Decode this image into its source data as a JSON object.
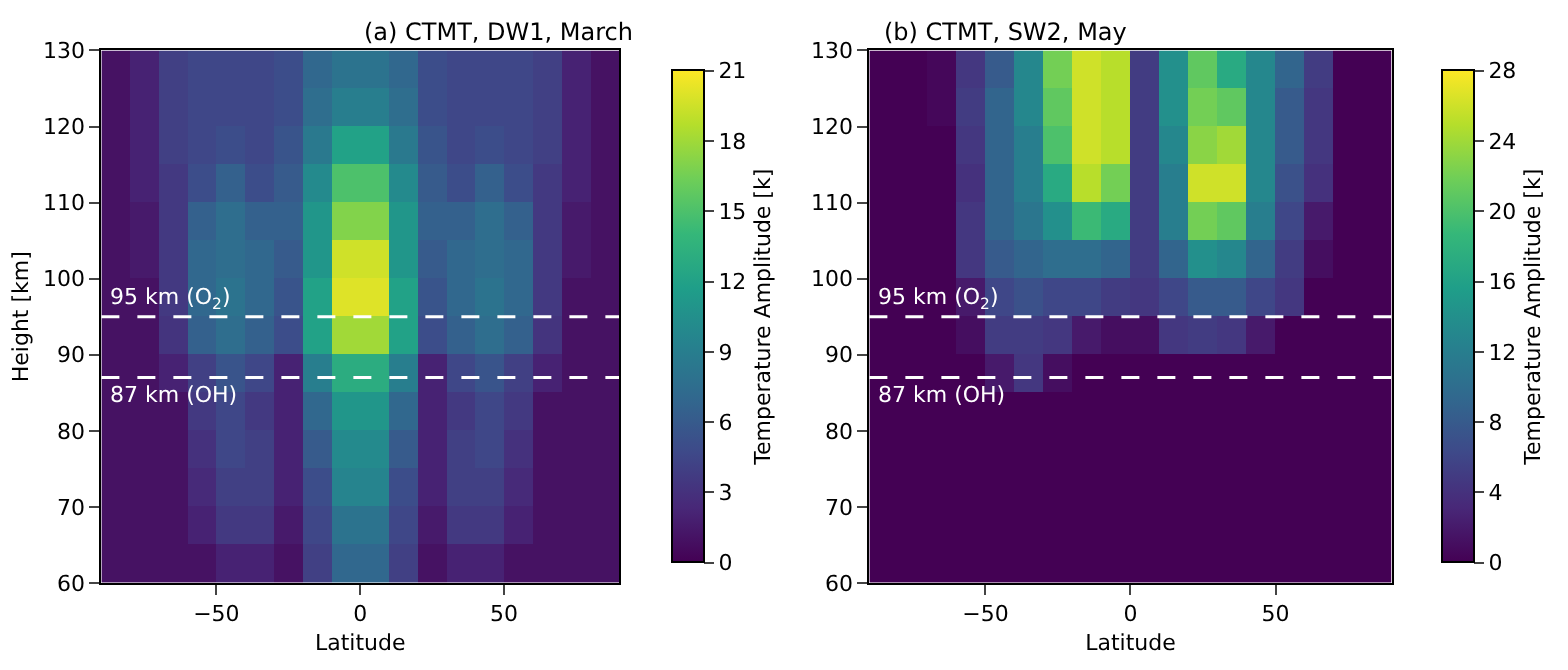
{
  "chart_data": [
    {
      "type": "heatmap",
      "title": "(a) CTMT, DW1, March",
      "xlabel": "Latitude",
      "ylabel": "Height [km]",
      "clabel": "Temperature Amplitude [k]",
      "x": [
        -85,
        -75,
        -65,
        -55,
        -45,
        -35,
        -25,
        -15,
        -5,
        5,
        15,
        25,
        35,
        45,
        55,
        65,
        75,
        85
      ],
      "y": [
        127.5,
        122.5,
        117.5,
        112.5,
        107.5,
        102.5,
        97.5,
        92.5,
        87.5,
        82.5,
        77.5,
        72.5,
        67.5,
        62.5
      ],
      "cells": [
        [
          1,
          2,
          4,
          4.5,
          4.5,
          4.5,
          5,
          7,
          8,
          8,
          7,
          5,
          4.5,
          4.5,
          4.5,
          4,
          2,
          1
        ],
        [
          1,
          2,
          4,
          4.5,
          4.5,
          4.5,
          5,
          7.5,
          9,
          9,
          7.5,
          5,
          4.5,
          4.5,
          4.5,
          4,
          2,
          1
        ],
        [
          1,
          2,
          4,
          4.5,
          5,
          4.5,
          5.5,
          8.5,
          12,
          12,
          8.5,
          5.5,
          4.5,
          5,
          4.5,
          4,
          2,
          1
        ],
        [
          1,
          2,
          3.5,
          5,
          6.5,
          5,
          6,
          10,
          15,
          15,
          10,
          6,
          5,
          6.5,
          5,
          3.5,
          2,
          1
        ],
        [
          1,
          1.5,
          3.5,
          6.5,
          7.5,
          6.5,
          6.5,
          11,
          17,
          17,
          11,
          6.5,
          6.5,
          7.5,
          6.5,
          3.5,
          1.5,
          1
        ],
        [
          1,
          1.5,
          3.5,
          7,
          7.5,
          7,
          6,
          11,
          19.5,
          19.5,
          11,
          6,
          7,
          7.5,
          7,
          3.5,
          1.5,
          1
        ],
        [
          1,
          1,
          3.5,
          7,
          8,
          7,
          5.5,
          12,
          20,
          20,
          12,
          5.5,
          7,
          8,
          7,
          3.5,
          1,
          1
        ],
        [
          1,
          1,
          3.2,
          6.5,
          7.5,
          6.5,
          5,
          12,
          18,
          18,
          12,
          5,
          6.5,
          7.5,
          6.5,
          3.2,
          1,
          1
        ],
        [
          1,
          1,
          2,
          4,
          5.5,
          4.5,
          2,
          9,
          13,
          13,
          9,
          2,
          4.5,
          5.5,
          4,
          2,
          1,
          1
        ],
        [
          1,
          1,
          1,
          3.5,
          4.5,
          3.5,
          2,
          7,
          11,
          11,
          7,
          2,
          3.5,
          4.5,
          3.5,
          1,
          1,
          1
        ],
        [
          1,
          1,
          1,
          3,
          4.5,
          4,
          2,
          6,
          10,
          10,
          6,
          2,
          4,
          4.5,
          3,
          1,
          1,
          1
        ],
        [
          1,
          1,
          1,
          2.5,
          4,
          4,
          2,
          5,
          9.5,
          9.5,
          5,
          2,
          4,
          4,
          2.5,
          1,
          1,
          1
        ],
        [
          1,
          1,
          1,
          2,
          3.5,
          3.5,
          1.5,
          4.5,
          8,
          8,
          4.5,
          1.5,
          3.5,
          3.5,
          2,
          1,
          1,
          1
        ],
        [
          1,
          1,
          1,
          1,
          2,
          2,
          1,
          4,
          7,
          7,
          4,
          1,
          2,
          2,
          1,
          1,
          1,
          1
        ]
      ],
      "clim": [
        0,
        21
      ],
      "cticks": [
        0,
        3,
        6,
        9,
        12,
        15,
        18,
        21
      ],
      "xlim": [
        -90,
        90
      ],
      "xticks": [
        {
          "value": -50,
          "label": "−50"
        },
        0,
        50
      ],
      "ylim": [
        60,
        130
      ],
      "yticks": [
        60,
        70,
        80,
        90,
        100,
        110,
        120,
        130
      ],
      "ref_lines": [
        {
          "axis": "y",
          "value": 95,
          "label": "95 km (O$_{2}$)",
          "color": "#ffffff",
          "line_style": "dashed"
        },
        {
          "axis": "y",
          "value": 87,
          "label": "87 km (OH)",
          "color": "#ffffff",
          "line_style": "dashed"
        }
      ]
    },
    {
      "type": "heatmap",
      "title": "(b) CTMT, SW2, May",
      "xlabel": "Latitude",
      "clabel": "Temperature Amplitude [k]",
      "x": [
        -85,
        -75,
        -65,
        -55,
        -45,
        -35,
        -25,
        -15,
        -5,
        5,
        15,
        25,
        35,
        45,
        55,
        65,
        75,
        85
      ],
      "y": [
        127.5,
        122.5,
        117.5,
        112.5,
        107.5,
        102.5,
        97.5,
        92.5,
        87.5,
        82.5,
        77.5,
        72.5,
        67.5,
        62.5
      ],
      "cells": [
        [
          0,
          0,
          0.5,
          4.5,
          8,
          13,
          22,
          26,
          25,
          5,
          14,
          21,
          17,
          13,
          9,
          5,
          0,
          0
        ],
        [
          0,
          0,
          0.5,
          5,
          9,
          13,
          21,
          26,
          25,
          5,
          14,
          22,
          21,
          13,
          8,
          4.5,
          0,
          0
        ],
        [
          0,
          0,
          0,
          4.5,
          9,
          12,
          20,
          26,
          25,
          5,
          13,
          23,
          24,
          13,
          8,
          4.5,
          0,
          0
        ],
        [
          0,
          0,
          0,
          4,
          9,
          12,
          17,
          25,
          22,
          5,
          12,
          26,
          26,
          13,
          7,
          4,
          0,
          0
        ],
        [
          0,
          0,
          0,
          4.5,
          9,
          11,
          14,
          19,
          17,
          5,
          12,
          22,
          21,
          12,
          6,
          2,
          0,
          0
        ],
        [
          0,
          0,
          0,
          4.5,
          8,
          9,
          10,
          10,
          9,
          5,
          9,
          14,
          13,
          9,
          5,
          1,
          0,
          0
        ],
        [
          0,
          0,
          0,
          2,
          6,
          7,
          6,
          6,
          5,
          4.5,
          6,
          8,
          8,
          6,
          4.5,
          0,
          0,
          0
        ],
        [
          0,
          0,
          0,
          1,
          5,
          5,
          4.5,
          2,
          1,
          1,
          4.5,
          5,
          4.5,
          2,
          0,
          0,
          0,
          0
        ],
        [
          0,
          0,
          0,
          0,
          2,
          4.5,
          1,
          0,
          0,
          0,
          0,
          0,
          0,
          0,
          0,
          0,
          0,
          0
        ],
        [
          0,
          0,
          0,
          0,
          0,
          0,
          0,
          0,
          0,
          0,
          0,
          0,
          0,
          0,
          0,
          0,
          0,
          0
        ],
        [
          0,
          0,
          0,
          0,
          0,
          0,
          0,
          0,
          0,
          0,
          0,
          0,
          0,
          0,
          0,
          0,
          0,
          0
        ],
        [
          0,
          0,
          0,
          0,
          0,
          0,
          0,
          0,
          0,
          0,
          0,
          0,
          0,
          0,
          0,
          0,
          0,
          0
        ],
        [
          0,
          0,
          0,
          0,
          0,
          0,
          0,
          0,
          0,
          0,
          0,
          0,
          0,
          0,
          0,
          0,
          0,
          0
        ],
        [
          0,
          0,
          0,
          0,
          0,
          0,
          0,
          0,
          0,
          0,
          0,
          0,
          0,
          0,
          0,
          0,
          0,
          0
        ]
      ],
      "clim": [
        0,
        28
      ],
      "cticks": [
        0,
        4,
        8,
        12,
        16,
        20,
        24,
        28
      ],
      "xlim": [
        -90,
        90
      ],
      "xticks": [
        {
          "value": -50,
          "label": "−50"
        },
        0,
        50
      ],
      "ylim": [
        60,
        130
      ],
      "yticks": [
        60,
        70,
        80,
        90,
        100,
        110,
        120,
        130
      ],
      "ref_lines": [
        {
          "axis": "y",
          "value": 95,
          "label": "95 km (O$_{2}$)",
          "color": "#ffffff",
          "line_style": "dashed"
        },
        {
          "axis": "y",
          "value": 87,
          "label": "87 km (OH)",
          "color": "#ffffff",
          "line_style": "dashed"
        }
      ]
    }
  ]
}
